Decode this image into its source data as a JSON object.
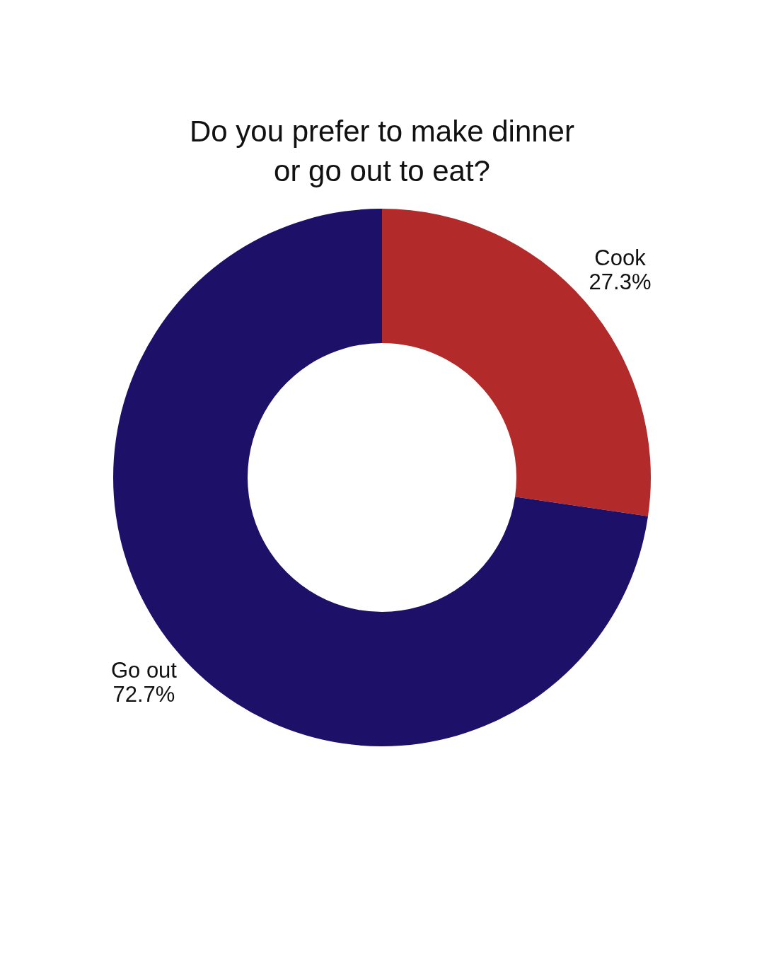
{
  "chart_data": {
    "type": "donut",
    "title": "Do you prefer to make dinner or go out to eat?",
    "categories": [
      "Cook",
      "Go out"
    ],
    "values": [
      27.3,
      72.7
    ],
    "colors": [
      "#b22a2a",
      "#1c1068"
    ],
    "value_labels": [
      "27.3%",
      "72.7%"
    ]
  }
}
